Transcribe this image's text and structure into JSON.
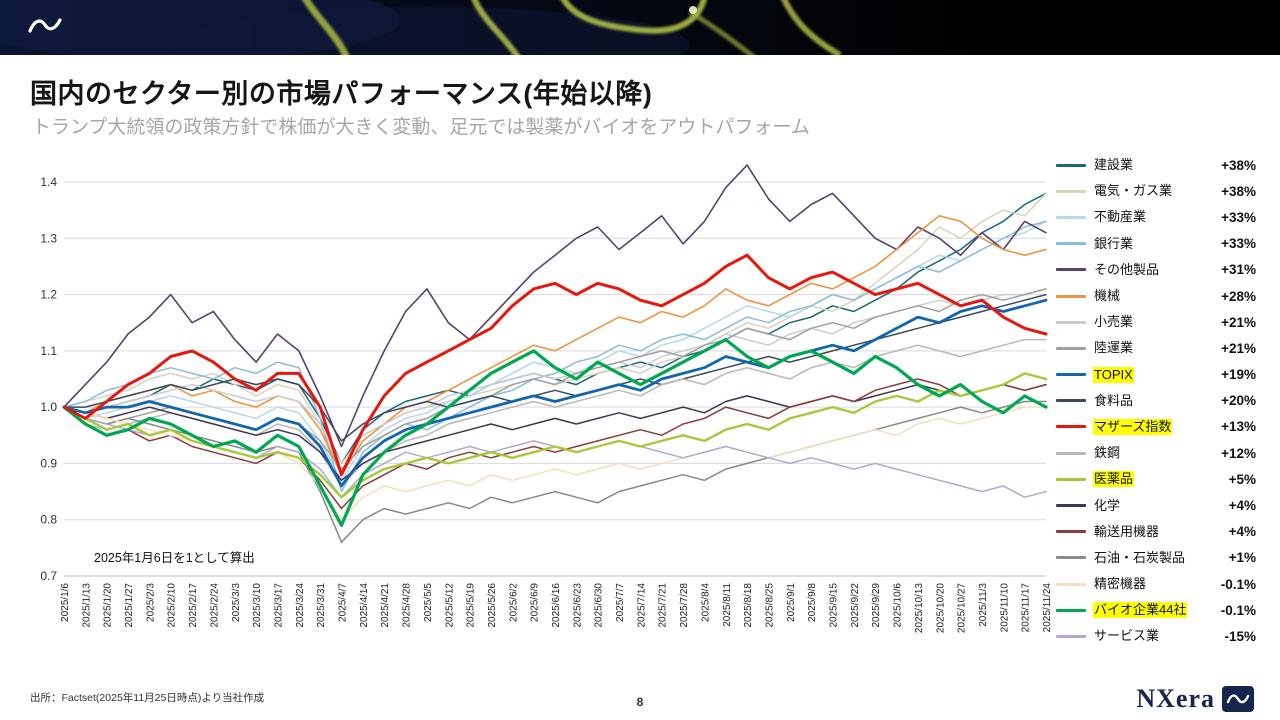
{
  "title": "国内のセクター別の市場パフォーマンス(年始以降)",
  "subtitle": "トランプ大統領の政策方針で株価が大きく変動、足元では製薬がバイオをアウトパフォーム",
  "chart_data": {
    "type": "line",
    "note": "2025年1月6日を1として算出",
    "ylim": [
      0.7,
      1.4
    ],
    "yticks": [
      0.7,
      0.8,
      0.9,
      1.0,
      1.1,
      1.2,
      1.3,
      1.4
    ],
    "grid": true,
    "legend_position": "right",
    "x_labels": [
      "2025/1/6",
      "2025/1/13",
      "2025/1/20",
      "2025/1/27",
      "2025/2/3",
      "2025/2/10",
      "2025/2/17",
      "2025/2/24",
      "2025/3/3",
      "2025/3/10",
      "2025/3/17",
      "2025/3/24",
      "2025/3/31",
      "2025/4/7",
      "2025/4/14",
      "2025/4/21",
      "2025/4/28",
      "2025/5/5",
      "2025/5/12",
      "2025/5/19",
      "2025/5/26",
      "2025/6/2",
      "2025/6/9",
      "2025/6/16",
      "2025/6/23",
      "2025/6/30",
      "2025/7/7",
      "2025/7/14",
      "2025/7/21",
      "2025/7/28",
      "2025/8/4",
      "2025/8/11",
      "2025/8/18",
      "2025/8/25",
      "2025/9/1",
      "2025/9/8",
      "2025/9/15",
      "2025/9/22",
      "2025/9/29",
      "2025/10/6",
      "2025/10/13",
      "2025/10/20",
      "2025/10/27",
      "2025/11/3",
      "2025/11/10",
      "2025/11/17",
      "2025/11/24"
    ],
    "series": [
      {
        "name": "建設業",
        "pct": "+38%",
        "color": "#17697c",
        "width": 1.5,
        "z": 1,
        "highlight": false,
        "values": [
          1.0,
          0.99,
          1.0,
          1.01,
          1.02,
          1.04,
          1.03,
          1.05,
          1.04,
          1.03,
          1.05,
          1.04,
          0.98,
          0.9,
          0.96,
          0.99,
          1.01,
          1.02,
          1.03,
          1.02,
          1.04,
          1.05,
          1.06,
          1.05,
          1.04,
          1.06,
          1.07,
          1.08,
          1.07,
          1.09,
          1.1,
          1.12,
          1.14,
          1.13,
          1.15,
          1.16,
          1.18,
          1.17,
          1.19,
          1.21,
          1.24,
          1.26,
          1.28,
          1.31,
          1.33,
          1.36,
          1.38
        ]
      },
      {
        "name": "電気・ガス業",
        "pct": "+38%",
        "color": "#d8d3bd",
        "width": 1.5,
        "z": 1,
        "highlight": false,
        "values": [
          1.0,
          1.01,
          1.02,
          1.03,
          1.05,
          1.06,
          1.05,
          1.06,
          1.04,
          1.02,
          1.04,
          1.03,
          0.97,
          0.88,
          0.94,
          0.97,
          0.99,
          1.0,
          1.01,
          1.02,
          1.03,
          1.04,
          1.05,
          1.04,
          1.05,
          1.06,
          1.07,
          1.06,
          1.08,
          1.09,
          1.11,
          1.13,
          1.15,
          1.14,
          1.16,
          1.18,
          1.17,
          1.19,
          1.22,
          1.25,
          1.28,
          1.32,
          1.3,
          1.33,
          1.35,
          1.34,
          1.38
        ]
      },
      {
        "name": "不動産業",
        "pct": "+33%",
        "color": "#b9d6ea",
        "width": 1.5,
        "z": 1,
        "highlight": false,
        "values": [
          1.0,
          0.98,
          0.99,
          1.0,
          1.01,
          1.02,
          1.01,
          1.0,
          0.99,
          0.98,
          1.0,
          0.99,
          0.94,
          0.87,
          0.93,
          0.96,
          0.98,
          0.99,
          1.01,
          1.02,
          1.04,
          1.06,
          1.08,
          1.07,
          1.06,
          1.08,
          1.1,
          1.09,
          1.11,
          1.12,
          1.14,
          1.16,
          1.18,
          1.17,
          1.16,
          1.18,
          1.2,
          1.19,
          1.21,
          1.23,
          1.25,
          1.27,
          1.26,
          1.28,
          1.3,
          1.31,
          1.33
        ]
      },
      {
        "name": "銀行業",
        "pct": "+33%",
        "color": "#8bbdd9",
        "width": 1.5,
        "z": 1,
        "highlight": false,
        "values": [
          1.0,
          1.01,
          1.03,
          1.04,
          1.06,
          1.07,
          1.06,
          1.05,
          1.07,
          1.06,
          1.08,
          1.07,
          0.98,
          0.85,
          0.92,
          0.95,
          0.97,
          0.96,
          0.98,
          1.0,
          1.02,
          1.03,
          1.05,
          1.06,
          1.08,
          1.09,
          1.11,
          1.1,
          1.12,
          1.13,
          1.12,
          1.14,
          1.16,
          1.15,
          1.17,
          1.18,
          1.2,
          1.19,
          1.21,
          1.23,
          1.25,
          1.24,
          1.26,
          1.28,
          1.3,
          1.32,
          1.33
        ]
      },
      {
        "name": "その他製品",
        "pct": "+31%",
        "color": "#554270",
        "width": 1.6,
        "z": 1,
        "highlight": false,
        "values": [
          1.0,
          1.04,
          1.08,
          1.13,
          1.16,
          1.2,
          1.15,
          1.17,
          1.12,
          1.08,
          1.13,
          1.1,
          1.02,
          0.93,
          1.02,
          1.1,
          1.17,
          1.21,
          1.15,
          1.12,
          1.16,
          1.2,
          1.24,
          1.27,
          1.3,
          1.32,
          1.28,
          1.31,
          1.34,
          1.29,
          1.33,
          1.39,
          1.43,
          1.37,
          1.33,
          1.36,
          1.38,
          1.34,
          1.3,
          1.28,
          1.32,
          1.3,
          1.27,
          1.31,
          1.28,
          1.33,
          1.31
        ]
      },
      {
        "name": "機械",
        "pct": "+28%",
        "color": "#ef9440",
        "width": 1.6,
        "z": 1,
        "highlight": false,
        "values": [
          1.0,
          0.99,
          1.01,
          1.02,
          1.03,
          1.04,
          1.02,
          1.03,
          1.01,
          1.0,
          1.02,
          1.01,
          0.96,
          0.88,
          0.94,
          0.97,
          1.0,
          1.01,
          1.03,
          1.05,
          1.07,
          1.09,
          1.11,
          1.1,
          1.12,
          1.14,
          1.16,
          1.15,
          1.17,
          1.16,
          1.18,
          1.21,
          1.19,
          1.18,
          1.2,
          1.22,
          1.21,
          1.23,
          1.25,
          1.28,
          1.31,
          1.34,
          1.33,
          1.3,
          1.28,
          1.27,
          1.28
        ]
      },
      {
        "name": "小売業",
        "pct": "+21%",
        "color": "#cccccc",
        "width": 1.5,
        "z": 1,
        "highlight": false,
        "values": [
          1.0,
          0.99,
          1.0,
          1.01,
          1.02,
          1.03,
          1.04,
          1.03,
          1.02,
          1.01,
          1.02,
          1.01,
          0.97,
          0.9,
          0.95,
          0.97,
          0.99,
          1.0,
          1.02,
          1.03,
          1.04,
          1.05,
          1.06,
          1.05,
          1.06,
          1.07,
          1.08,
          1.07,
          1.09,
          1.1,
          1.11,
          1.13,
          1.12,
          1.11,
          1.13,
          1.14,
          1.13,
          1.15,
          1.16,
          1.17,
          1.18,
          1.19,
          1.18,
          1.19,
          1.2,
          1.2,
          1.21
        ]
      },
      {
        "name": "陸運業",
        "pct": "+21%",
        "color": "#a0a0a0",
        "width": 1.5,
        "z": 1,
        "highlight": false,
        "values": [
          1.0,
          0.98,
          0.97,
          0.98,
          0.99,
          1.0,
          0.99,
          0.98,
          0.97,
          0.96,
          0.98,
          0.97,
          0.94,
          0.89,
          0.93,
          0.95,
          0.97,
          0.98,
          1.0,
          1.01,
          1.02,
          1.04,
          1.05,
          1.04,
          1.06,
          1.07,
          1.08,
          1.09,
          1.1,
          1.09,
          1.11,
          1.12,
          1.14,
          1.13,
          1.12,
          1.14,
          1.15,
          1.14,
          1.16,
          1.17,
          1.18,
          1.17,
          1.19,
          1.2,
          1.19,
          1.2,
          1.21
        ]
      },
      {
        "name": "TOPIX",
        "pct": "+19%",
        "color": "#1266ae",
        "width": 2.8,
        "z": 3,
        "highlight": true,
        "values": [
          1.0,
          0.99,
          1.0,
          1.0,
          1.01,
          1.0,
          0.99,
          0.98,
          0.97,
          0.96,
          0.98,
          0.97,
          0.93,
          0.86,
          0.91,
          0.94,
          0.96,
          0.97,
          0.98,
          0.99,
          1.0,
          1.01,
          1.02,
          1.01,
          1.02,
          1.03,
          1.04,
          1.03,
          1.05,
          1.06,
          1.07,
          1.09,
          1.08,
          1.07,
          1.09,
          1.1,
          1.11,
          1.1,
          1.12,
          1.14,
          1.16,
          1.15,
          1.17,
          1.18,
          1.17,
          1.18,
          1.19
        ]
      },
      {
        "name": "食料品",
        "pct": "+20%",
        "color": "#3c4a5e",
        "width": 1.5,
        "z": 1,
        "highlight": false,
        "values": [
          1.0,
          1.0,
          1.01,
          1.02,
          1.03,
          1.04,
          1.03,
          1.04,
          1.05,
          1.04,
          1.05,
          1.04,
          1.0,
          0.94,
          0.97,
          0.99,
          1.0,
          1.01,
          1.0,
          1.01,
          1.02,
          1.01,
          1.02,
          1.03,
          1.02,
          1.03,
          1.04,
          1.05,
          1.04,
          1.05,
          1.06,
          1.07,
          1.08,
          1.09,
          1.08,
          1.09,
          1.1,
          1.11,
          1.12,
          1.13,
          1.14,
          1.15,
          1.16,
          1.17,
          1.18,
          1.19,
          1.2
        ]
      },
      {
        "name": "マザーズ指数",
        "pct": "+13%",
        "color": "#e8160c",
        "width": 3.0,
        "z": 5,
        "highlight": true,
        "values": [
          1.0,
          0.98,
          1.01,
          1.04,
          1.06,
          1.09,
          1.1,
          1.08,
          1.05,
          1.03,
          1.06,
          1.06,
          1.0,
          0.88,
          0.96,
          1.02,
          1.06,
          1.08,
          1.1,
          1.12,
          1.14,
          1.18,
          1.21,
          1.22,
          1.2,
          1.22,
          1.21,
          1.19,
          1.18,
          1.2,
          1.22,
          1.25,
          1.27,
          1.23,
          1.21,
          1.23,
          1.24,
          1.22,
          1.2,
          1.21,
          1.22,
          1.2,
          1.18,
          1.19,
          1.16,
          1.14,
          1.13
        ]
      },
      {
        "name": "鉄鋼",
        "pct": "+12%",
        "color": "#b8b8b8",
        "width": 1.5,
        "z": 1,
        "highlight": false,
        "values": [
          1.0,
          0.97,
          0.96,
          0.97,
          0.98,
          0.99,
          0.98,
          0.97,
          0.96,
          0.95,
          0.97,
          0.96,
          0.92,
          0.86,
          0.9,
          0.92,
          0.94,
          0.95,
          0.97,
          0.98,
          0.99,
          1.0,
          1.01,
          1.0,
          1.01,
          1.02,
          1.03,
          1.02,
          1.04,
          1.05,
          1.04,
          1.06,
          1.07,
          1.06,
          1.05,
          1.07,
          1.08,
          1.07,
          1.09,
          1.1,
          1.11,
          1.1,
          1.09,
          1.1,
          1.11,
          1.12,
          1.12
        ]
      },
      {
        "name": "医薬品",
        "pct": "+5%",
        "color": "#a6c839",
        "width": 2.4,
        "z": 2,
        "highlight": true,
        "values": [
          1.0,
          0.98,
          0.96,
          0.97,
          0.95,
          0.96,
          0.94,
          0.93,
          0.92,
          0.91,
          0.92,
          0.91,
          0.88,
          0.84,
          0.87,
          0.89,
          0.9,
          0.91,
          0.9,
          0.91,
          0.92,
          0.91,
          0.92,
          0.93,
          0.92,
          0.93,
          0.94,
          0.93,
          0.94,
          0.95,
          0.94,
          0.96,
          0.97,
          0.96,
          0.98,
          0.99,
          1.0,
          0.99,
          1.01,
          1.02,
          1.01,
          1.03,
          1.02,
          1.03,
          1.04,
          1.06,
          1.05
        ]
      },
      {
        "name": "化学",
        "pct": "+4%",
        "color": "#403455",
        "width": 1.5,
        "z": 1,
        "highlight": false,
        "values": [
          1.0,
          0.99,
          0.98,
          0.99,
          1.0,
          0.99,
          0.98,
          0.97,
          0.96,
          0.95,
          0.96,
          0.95,
          0.92,
          0.87,
          0.9,
          0.92,
          0.93,
          0.94,
          0.95,
          0.96,
          0.97,
          0.96,
          0.97,
          0.98,
          0.97,
          0.98,
          0.99,
          0.98,
          0.99,
          1.0,
          0.99,
          1.01,
          1.02,
          1.01,
          1.0,
          1.01,
          1.02,
          1.01,
          1.02,
          1.03,
          1.04,
          1.03,
          1.02,
          1.03,
          1.04,
          1.03,
          1.04
        ]
      },
      {
        "name": "輸送用機器",
        "pct": "+4%",
        "color": "#8c3b3e",
        "width": 1.5,
        "z": 1,
        "highlight": false,
        "values": [
          1.0,
          0.97,
          0.95,
          0.96,
          0.94,
          0.95,
          0.93,
          0.92,
          0.91,
          0.9,
          0.92,
          0.91,
          0.87,
          0.82,
          0.86,
          0.88,
          0.9,
          0.89,
          0.91,
          0.92,
          0.91,
          0.92,
          0.93,
          0.92,
          0.93,
          0.94,
          0.95,
          0.96,
          0.95,
          0.97,
          0.98,
          1.0,
          0.99,
          0.98,
          1.0,
          1.01,
          1.02,
          1.01,
          1.03,
          1.04,
          1.05,
          1.04,
          1.02,
          1.03,
          1.04,
          1.03,
          1.04
        ]
      },
      {
        "name": "石油・石炭製品",
        "pct": "+1%",
        "color": "#898989",
        "width": 1.5,
        "z": 1,
        "highlight": false,
        "values": [
          1.0,
          0.98,
          0.97,
          0.98,
          0.97,
          0.96,
          0.95,
          0.94,
          0.93,
          0.92,
          0.93,
          0.92,
          0.85,
          0.76,
          0.8,
          0.82,
          0.81,
          0.82,
          0.83,
          0.82,
          0.84,
          0.83,
          0.84,
          0.85,
          0.84,
          0.83,
          0.85,
          0.86,
          0.87,
          0.88,
          0.87,
          0.89,
          0.9,
          0.91,
          0.92,
          0.93,
          0.94,
          0.95,
          0.96,
          0.97,
          0.98,
          0.99,
          1.0,
          0.99,
          1.0,
          1.01,
          1.01
        ]
      },
      {
        "name": "精密機器",
        "pct": "-0.1%",
        "color": "#f6ddc1",
        "width": 1.5,
        "z": 1,
        "highlight": false,
        "values": [
          1.0,
          0.99,
          0.98,
          0.97,
          0.96,
          0.95,
          0.94,
          0.93,
          0.92,
          0.91,
          0.92,
          0.9,
          0.86,
          0.8,
          0.84,
          0.86,
          0.85,
          0.86,
          0.87,
          0.86,
          0.88,
          0.87,
          0.88,
          0.89,
          0.88,
          0.89,
          0.9,
          0.89,
          0.9,
          0.91,
          0.92,
          0.93,
          0.92,
          0.91,
          0.92,
          0.93,
          0.94,
          0.95,
          0.96,
          0.95,
          0.97,
          0.98,
          0.97,
          0.98,
          0.99,
          1.0,
          1.0
        ]
      },
      {
        "name": "バイオ企業44社",
        "pct": "-0.1%",
        "color": "#00a84f",
        "width": 3.2,
        "z": 4,
        "highlight": true,
        "values": [
          1.0,
          0.97,
          0.95,
          0.96,
          0.98,
          0.97,
          0.95,
          0.93,
          0.94,
          0.92,
          0.95,
          0.93,
          0.86,
          0.79,
          0.88,
          0.92,
          0.95,
          0.97,
          1.0,
          1.03,
          1.06,
          1.08,
          1.1,
          1.07,
          1.05,
          1.08,
          1.06,
          1.04,
          1.06,
          1.08,
          1.1,
          1.12,
          1.09,
          1.07,
          1.09,
          1.1,
          1.08,
          1.06,
          1.09,
          1.07,
          1.04,
          1.02,
          1.04,
          1.01,
          0.99,
          1.02,
          1.0
        ]
      },
      {
        "name": "サービス業",
        "pct": "-15%",
        "color": "#b4a7d0",
        "width": 1.5,
        "z": 1,
        "highlight": false,
        "values": [
          1.0,
          0.98,
          0.97,
          0.96,
          0.95,
          0.96,
          0.94,
          0.93,
          0.92,
          0.91,
          0.93,
          0.92,
          0.89,
          0.84,
          0.88,
          0.9,
          0.92,
          0.91,
          0.92,
          0.93,
          0.92,
          0.93,
          0.94,
          0.93,
          0.92,
          0.93,
          0.94,
          0.93,
          0.92,
          0.91,
          0.92,
          0.93,
          0.92,
          0.91,
          0.9,
          0.91,
          0.9,
          0.89,
          0.9,
          0.89,
          0.88,
          0.87,
          0.86,
          0.85,
          0.86,
          0.84,
          0.85
        ]
      }
    ]
  },
  "footer": {
    "source": "出所：Factset(2025年11月25日時点)より当社作成",
    "page": "8",
    "brand_text": "NXera"
  }
}
